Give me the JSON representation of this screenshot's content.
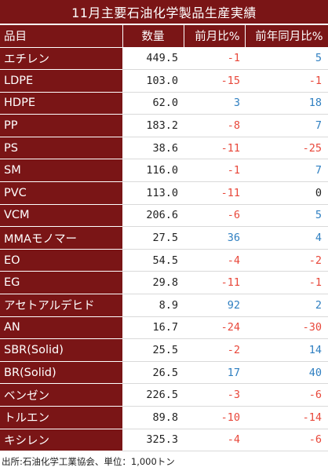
{
  "title": "11月主要石油化学製品生産実績",
  "headers": {
    "name": "品目",
    "qty": "数量",
    "mom": "前月比%",
    "yoy": "前年同月比%"
  },
  "rows": [
    {
      "name": "エチレン",
      "qty": "449.5",
      "mom": -1,
      "yoy": 5
    },
    {
      "name": "LDPE",
      "qty": "103.0",
      "mom": -15,
      "yoy": -1
    },
    {
      "name": "HDPE",
      "qty": "62.0",
      "mom": 3,
      "yoy": 18
    },
    {
      "name": "PP",
      "qty": "183.2",
      "mom": -8,
      "yoy": 7
    },
    {
      "name": "PS",
      "qty": "38.6",
      "mom": -11,
      "yoy": -25
    },
    {
      "name": "SM",
      "qty": "116.0",
      "mom": -1,
      "yoy": 7
    },
    {
      "name": "PVC",
      "qty": "113.0",
      "mom": -11,
      "yoy": 0
    },
    {
      "name": "VCM",
      "qty": "206.6",
      "mom": -6,
      "yoy": 5
    },
    {
      "name": "MMAモノマー",
      "qty": "27.5",
      "mom": 36,
      "yoy": 4
    },
    {
      "name": "EO",
      "qty": "54.5",
      "mom": -4,
      "yoy": -2
    },
    {
      "name": "EG",
      "qty": "29.8",
      "mom": -11,
      "yoy": -1
    },
    {
      "name": "アセトアルデヒド",
      "qty": "8.9",
      "mom": 92,
      "yoy": 2
    },
    {
      "name": "AN",
      "qty": "16.7",
      "mom": -24,
      "yoy": -30
    },
    {
      "name": "SBR(Solid)",
      "qty": "25.5",
      "mom": -2,
      "yoy": 14
    },
    {
      "name": "BR(Solid)",
      "qty": "26.5",
      "mom": 17,
      "yoy": 40
    },
    {
      "name": "ベンゼン",
      "qty": "226.5",
      "mom": -3,
      "yoy": -6
    },
    {
      "name": "トルエン",
      "qty": "89.8",
      "mom": -10,
      "yoy": -14
    },
    {
      "name": "キシレン",
      "qty": "325.3",
      "mom": -4,
      "yoy": -6
    }
  ],
  "source": "出所:石油化学工業協会、単位：1,000トン",
  "colors": {
    "header_bg": "#7a1516",
    "negative": "#e8473a",
    "positive": "#2f7fc1"
  }
}
